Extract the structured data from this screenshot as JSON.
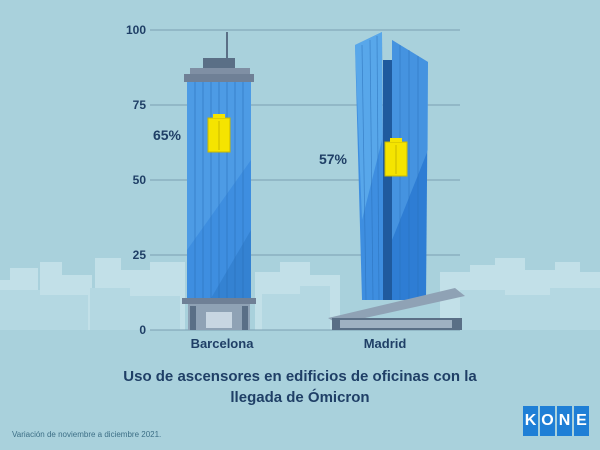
{
  "chart_data": {
    "type": "bar",
    "categories": [
      "Barcelona",
      "Madrid"
    ],
    "values": [
      65,
      57
    ],
    "value_labels": [
      "65%",
      "57%"
    ],
    "ylim": [
      0,
      100
    ],
    "yticks": [
      0,
      25,
      50,
      75,
      100
    ],
    "grid": true,
    "title": "Uso de ascensores en edificios de oficinas con la llegada de Ómicron",
    "xlabel": "",
    "ylabel": ""
  },
  "title_lines": [
    "Uso de ascensores en edificios de oficinas con la",
    "llegada de Ómicron"
  ],
  "footnote": "Variación de noviembre a diciembre 2021.",
  "logo_letters": [
    "K",
    "O",
    "N",
    "E"
  ],
  "colors": {
    "background": "#a9d1dc",
    "text": "#1f3f66",
    "building_blue": "#3e8ee0",
    "elevator": "#f5e400",
    "logo": "#1f7fd6"
  }
}
